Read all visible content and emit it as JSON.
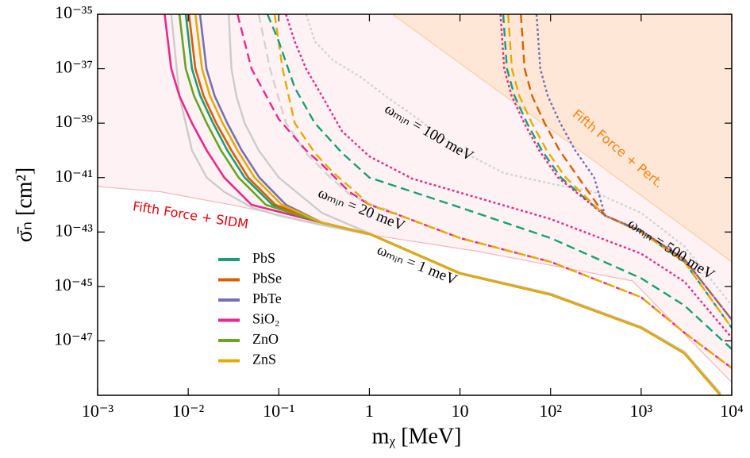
{
  "chart_data": {
    "type": "line",
    "log_x": true,
    "log_y": true,
    "x_label": "mᵪ [MeV]",
    "y_label": "σ̄ₙ [cm²]",
    "xlim": [
      0.001,
      10000
    ],
    "ylim": [
      1e-49,
      1e-35
    ],
    "xticks": [
      {
        "value": 0.001,
        "label": "10⁻³"
      },
      {
        "value": 0.01,
        "label": "10⁻²"
      },
      {
        "value": 0.1,
        "label": "10⁻¹"
      },
      1,
      10,
      {
        "value": 100,
        "label": "10²"
      },
      {
        "value": 1000,
        "label": "10³"
      },
      {
        "value": 10000,
        "label": "10⁴"
      }
    ],
    "yticks": [
      {
        "value": 1e-35,
        "label": "10⁻³⁵"
      },
      {
        "value": 1e-37,
        "label": "10⁻³⁷"
      },
      {
        "value": 1e-39,
        "label": "10⁻³⁹"
      },
      {
        "value": 1e-41,
        "label": "10⁻⁴¹"
      },
      {
        "value": 1e-43,
        "label": "10⁻⁴³"
      },
      {
        "value": 1e-45,
        "label": "10⁻⁴⁵"
      },
      {
        "value": 1e-47,
        "label": "10⁻⁴⁷"
      }
    ],
    "annotations": [
      "ωₘᵢₙ = 100 meV",
      "ωₘᵢₙ = 20 meV",
      "ωₘᵢₙ = 1 meV",
      "ωₘᵢₙ = 500 meV"
    ],
    "regions": [
      {
        "label": "Fifth Force + SIDM",
        "color": "#fdeef0",
        "edge": "#f7b6bd",
        "x": [
          0.001,
          0.005,
          0.035,
          1,
          15,
          800,
          10000
        ],
        "values": [
          4.7e-42,
          3e-42,
          9e-43,
          8e-44,
          2e-44,
          1.6e-45,
          3e-49
        ]
      },
      {
        "label": "Fifth Force + Pert.",
        "color": "#fde3cc",
        "edge": "#f8cfa8",
        "x": [
          1.8,
          100,
          1000,
          10000
        ],
        "values": [
          1e-35,
          6e-40,
          2.2e-42,
          8e-45
        ]
      }
    ],
    "series": [
      {
        "name": "PbS",
        "color": "#1b9e77",
        "style": "solid",
        "x": [
          0.0094,
          0.011,
          0.0136,
          0.0188,
          0.027,
          0.042,
          0.085,
          0.3,
          1,
          10,
          100,
          1000,
          3000,
          7500
        ],
        "values": [
          1e-35,
          1e-37,
          1e-38,
          1e-39,
          1e-40,
          1e-41,
          1e-42,
          2.2e-43,
          8.5e-44,
          3e-45,
          5e-46,
          3e-47,
          3.5e-48,
          1e-49
        ]
      },
      {
        "name": "PbSe",
        "color": "#d95f02",
        "style": "solid",
        "x": [
          0.0102,
          0.012,
          0.0148,
          0.0204,
          0.03,
          0.046,
          0.092,
          0.3,
          1,
          10,
          100,
          1000,
          3000,
          7500
        ],
        "values": [
          1e-35,
          1e-37,
          1e-38,
          1e-39,
          1e-40,
          1e-41,
          1e-42,
          2.2e-43,
          8.5e-44,
          3e-45,
          5e-46,
          3e-47,
          3.5e-48,
          1e-49
        ]
      },
      {
        "name": "PbTe",
        "color": "#7570b3",
        "style": "solid",
        "x": [
          0.0135,
          0.0159,
          0.0196,
          0.027,
          0.039,
          0.061,
          0.12,
          0.3,
          1,
          10,
          100,
          1000,
          3000,
          7500
        ],
        "values": [
          1e-35,
          1e-37,
          1e-38,
          1e-39,
          1e-40,
          1e-41,
          1e-42,
          2.2e-43,
          8.5e-44,
          3e-45,
          5e-46,
          3e-47,
          3.5e-48,
          1e-49
        ]
      },
      {
        "name": "SiO₂",
        "color": "#e7298a",
        "style": "solid",
        "x": [
          0.0055,
          0.0065,
          0.008,
          0.011,
          0.016,
          0.025,
          0.05,
          0.3,
          1,
          10,
          100,
          1000,
          3000,
          7500
        ],
        "values": [
          1e-35,
          1e-37,
          1e-38,
          1e-39,
          1e-40,
          1e-41,
          1e-42,
          2.2e-43,
          8.5e-44,
          3e-45,
          5e-46,
          3e-47,
          3.5e-48,
          1e-49
        ]
      },
      {
        "name": "ZnO",
        "color": "#66a61e",
        "style": "solid",
        "x": [
          0.008,
          0.0094,
          0.0116,
          0.016,
          0.023,
          0.036,
          0.072,
          0.3,
          1,
          10,
          100,
          1000,
          3000,
          7500
        ],
        "values": [
          1e-35,
          1e-37,
          1e-38,
          1e-39,
          1e-40,
          1e-41,
          1e-42,
          2.2e-43,
          8.5e-44,
          3e-45,
          5e-46,
          3e-47,
          3.5e-48,
          1e-49
        ]
      },
      {
        "name": "ZnS",
        "color": "#e6ab02",
        "style": "solid",
        "x": [
          0.012,
          0.0142,
          0.0174,
          0.024,
          0.035,
          0.054,
          0.108,
          0.3,
          1,
          10,
          100,
          1000,
          3000,
          7500
        ],
        "values": [
          1e-35,
          1e-37,
          1e-38,
          1e-39,
          1e-40,
          1e-41,
          1e-42,
          2.2e-43,
          8.5e-44,
          3e-45,
          5e-46,
          3e-47,
          3.5e-48,
          1e-49
        ]
      },
      {
        "color": "#cccccc",
        "style": "solid",
        "x": [
          0.028,
          0.03,
          0.034,
          0.042,
          0.06,
          0.1,
          0.3,
          1,
          10,
          100,
          1000,
          3000,
          7500
        ],
        "values": [
          1e-35,
          1e-37,
          1e-38,
          1e-39,
          1e-40,
          1e-41,
          5e-43,
          9e-44,
          3.2e-45,
          5.5e-46,
          3.3e-47,
          4e-48,
          1.2e-49
        ]
      },
      {
        "color": "#cccccc",
        "style": "solid",
        "x": [
          0.0065,
          0.008,
          0.011,
          0.016,
          0.025,
          0.05,
          0.1,
          0.3,
          1
        ],
        "values": [
          1e-35,
          1e-38,
          1e-40,
          1e-41,
          3e-42,
          8e-43,
          4e-43,
          1.8e-43,
          8e-44
        ]
      },
      {
        "color": "#e7298a",
        "style": "dashed",
        "x": [
          0.035,
          0.05,
          0.1,
          0.2,
          0.3,
          0.6,
          1,
          2,
          10,
          100,
          1000,
          3000,
          10000
        ],
        "values": [
          1e-35,
          1e-37,
          1.4e-39,
          1e-40,
          3e-41,
          3e-42,
          1e-42,
          4.5e-43,
          6e-44,
          8e-45,
          4e-46,
          2e-47,
          1e-48
        ]
      },
      {
        "color": "#e6ab02",
        "style": "dashed",
        "x": [
          0.09,
          0.11,
          0.15,
          0.25,
          0.4,
          0.7,
          1,
          2,
          10,
          100,
          1000,
          3000,
          10000
        ],
        "values": [
          1e-35,
          1e-37,
          1e-39,
          8e-41,
          1.5e-41,
          3e-42,
          1e-42,
          4.5e-43,
          6e-44,
          8e-45,
          4e-46,
          2e-47,
          1e-48
        ]
      },
      {
        "color": "#1b9e77",
        "style": "dashed",
        "x": [
          0.075,
          0.1,
          0.15,
          0.25,
          0.5,
          1,
          3,
          10,
          100,
          1000,
          3000,
          10000
        ],
        "values": [
          1e-35,
          1e-36,
          2e-38,
          1e-39,
          8e-41,
          1e-41,
          3e-42,
          8e-43,
          6e-44,
          2e-45,
          2e-46,
          5e-48
        ]
      },
      {
        "color": "#d3d3d3",
        "style": "dashed",
        "x": [
          0.06,
          0.08,
          0.12,
          0.2,
          0.35,
          0.6,
          1,
          2
        ],
        "values": [
          1e-35,
          1e-37,
          1e-39,
          8e-41,
          1.2e-41,
          2.5e-42,
          1.1e-42,
          5e-43
        ]
      },
      {
        "color": "#e7298a",
        "style": "dotted",
        "x": [
          0.12,
          0.15,
          0.2,
          0.3,
          0.5,
          1,
          3,
          10,
          100,
          1000,
          3000,
          10000
        ],
        "values": [
          1e-35,
          1e-36,
          1e-37,
          1e-38,
          5e-40,
          6e-41,
          9e-42,
          2.8e-42,
          3e-43,
          1.6e-44,
          1.5e-45,
          1.3e-47
        ]
      },
      {
        "color": "#d3d3d3",
        "style": "dotted",
        "x": [
          0.2,
          0.25,
          0.4,
          0.8,
          1.5,
          3,
          10,
          30,
          100,
          300,
          1000,
          3000,
          10000
        ],
        "values": [
          1e-35,
          1e-36,
          2e-37,
          5e-38,
          1e-38,
          2e-39,
          1e-40,
          1.5e-41,
          6e-42,
          3e-42,
          5e-43,
          3e-44,
          2e-46
        ]
      },
      {
        "color": "#1b9e77",
        "style": "dashed",
        "x": [
          30,
          33,
          40,
          55,
          80,
          130,
          400,
          1000,
          3000,
          10000
        ],
        "values": [
          1e-35,
          1e-37,
          1e-38,
          1e-39,
          1e-40,
          1e-41,
          4e-43,
          1e-43,
          8e-45,
          3e-47
        ]
      },
      {
        "color": "#e7298a",
        "style": "dotted",
        "x": [
          28,
          30.8,
          37.2,
          51.2,
          74.8,
          121,
          400,
          1000,
          3000,
          10000
        ],
        "values": [
          1e-35,
          1e-37,
          1e-38,
          1e-39,
          1e-40,
          1e-41,
          4e-43,
          1.1e-43,
          1e-44,
          6e-47
        ]
      },
      {
        "color": "#e6ab02",
        "style": "dashed",
        "x": [
          34,
          37.4,
          45.2,
          62.2,
          90.8,
          147,
          400,
          1000,
          3000,
          10000
        ],
        "values": [
          1e-35,
          1e-37,
          1e-38,
          1e-39,
          1e-40,
          1e-41,
          4e-43,
          1e-43,
          8e-45,
          3e-47
        ]
      },
      {
        "color": "#d95f02",
        "style": "dashed",
        "x": [
          47,
          51.7,
          62.5,
          86,
          125.5,
          203.5,
          400,
          1000,
          3000,
          10000
        ],
        "values": [
          1e-35,
          1e-37,
          1e-38,
          1e-39,
          1e-40,
          1e-41,
          4e-43,
          1.1e-43,
          1e-44,
          6e-47
        ]
      },
      {
        "color": "#7570b3",
        "style": "dotted",
        "x": [
          70,
          77,
          93.1,
          128,
          187,
          303,
          400,
          1000,
          3000,
          10000
        ],
        "values": [
          1e-35,
          1e-37,
          1e-38,
          1e-39,
          1e-40,
          1e-41,
          4e-43,
          1.1e-43,
          1e-44,
          6e-47
        ]
      }
    ]
  }
}
